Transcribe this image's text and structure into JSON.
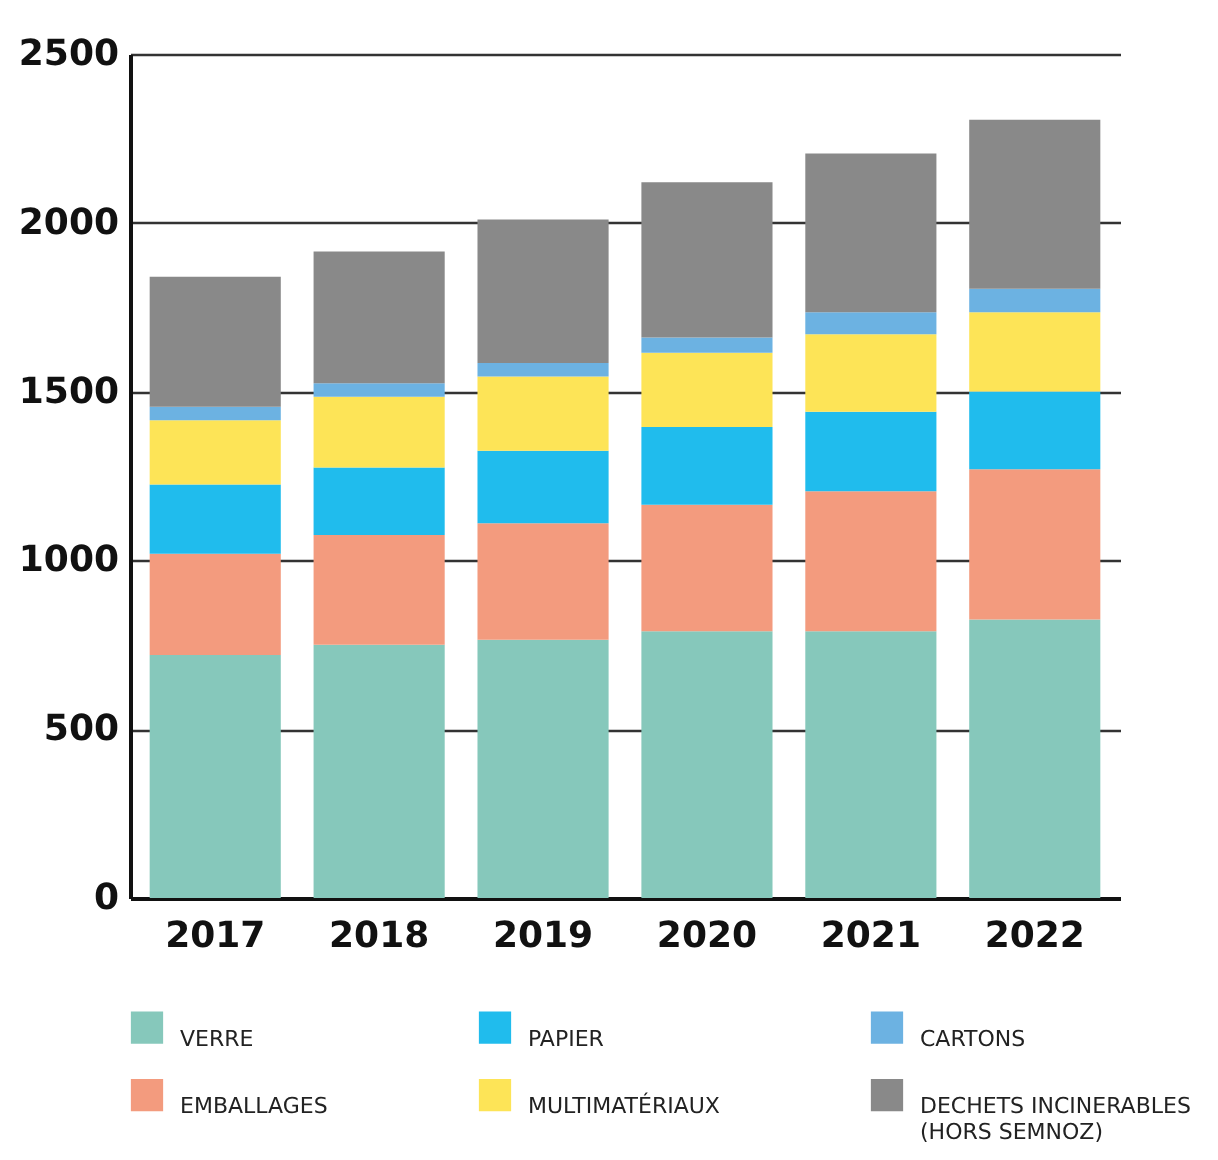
{
  "chart_data": {
    "type": "bar",
    "stacked": true,
    "categories": [
      "2017",
      "2018",
      "2019",
      "2020",
      "2021",
      "2022"
    ],
    "series": [
      {
        "name": "VERRE",
        "color": "#86c8bb",
        "values": [
          720,
          750,
          765,
          790,
          790,
          825
        ]
      },
      {
        "name": "EMBALLAGES",
        "color": "#f39b7e",
        "values": [
          300,
          325,
          345,
          375,
          415,
          445
        ]
      },
      {
        "name": "PAPIER",
        "color": "#20bced",
        "values": [
          205,
          200,
          215,
          230,
          235,
          230
        ]
      },
      {
        "name": "MULTIMATÉRIAUX",
        "color": "#fde457",
        "values": [
          190,
          210,
          220,
          220,
          230,
          235
        ]
      },
      {
        "name": "CARTONS",
        "color": "#6cb2e2",
        "values": [
          40,
          40,
          40,
          45,
          65,
          70
        ]
      },
      {
        "name": "DECHETS INCINERABLES (HORS SEMNOZ)",
        "color": "#898989",
        "values": [
          385,
          390,
          425,
          460,
          470,
          500
        ]
      }
    ],
    "ylim": [
      0,
      2500
    ],
    "yticks": [
      0,
      500,
      1000,
      1500,
      2000,
      2500
    ],
    "grid": "y",
    "legend": "bottom"
  }
}
